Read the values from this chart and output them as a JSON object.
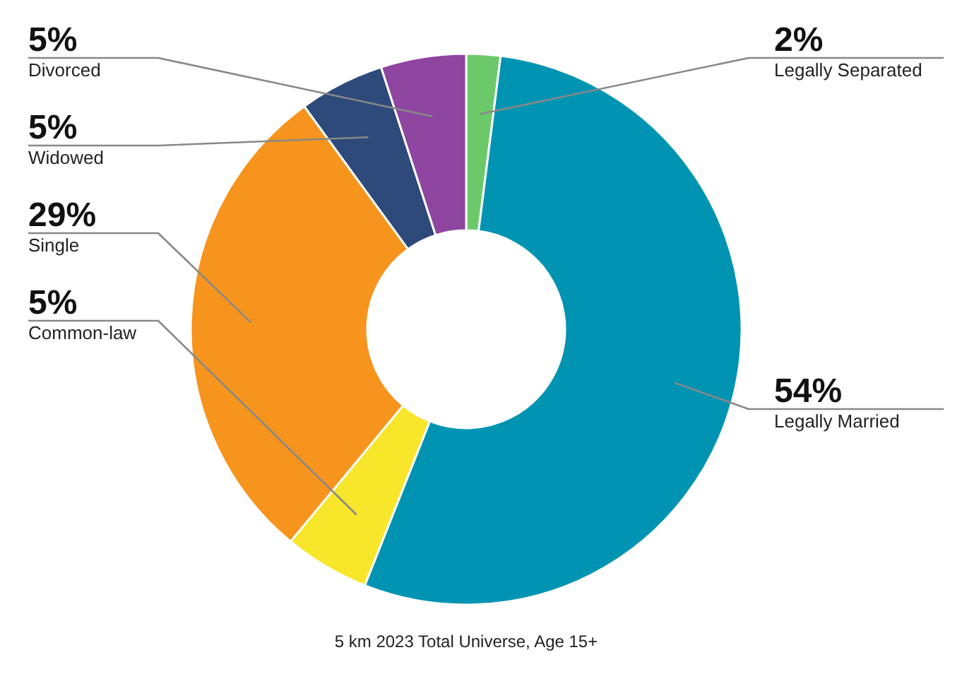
{
  "chart_data": {
    "type": "donut",
    "categories": [
      "Legally Separated",
      "Legally Married",
      "Common-law",
      "Single",
      "Widowed",
      "Divorced"
    ],
    "values": [
      2,
      54,
      5,
      29,
      5,
      5
    ],
    "colors": [
      "#6cc96a",
      "#0094b2",
      "#f7e629",
      "#f7941d",
      "#2e4a7b",
      "#8d45a0"
    ],
    "value_labels": [
      "2%",
      "54%",
      "5%",
      "29%",
      "5%",
      "5%"
    ],
    "annotations": [
      "5 km 2023 Total Universe, Age 15+"
    ]
  }
}
